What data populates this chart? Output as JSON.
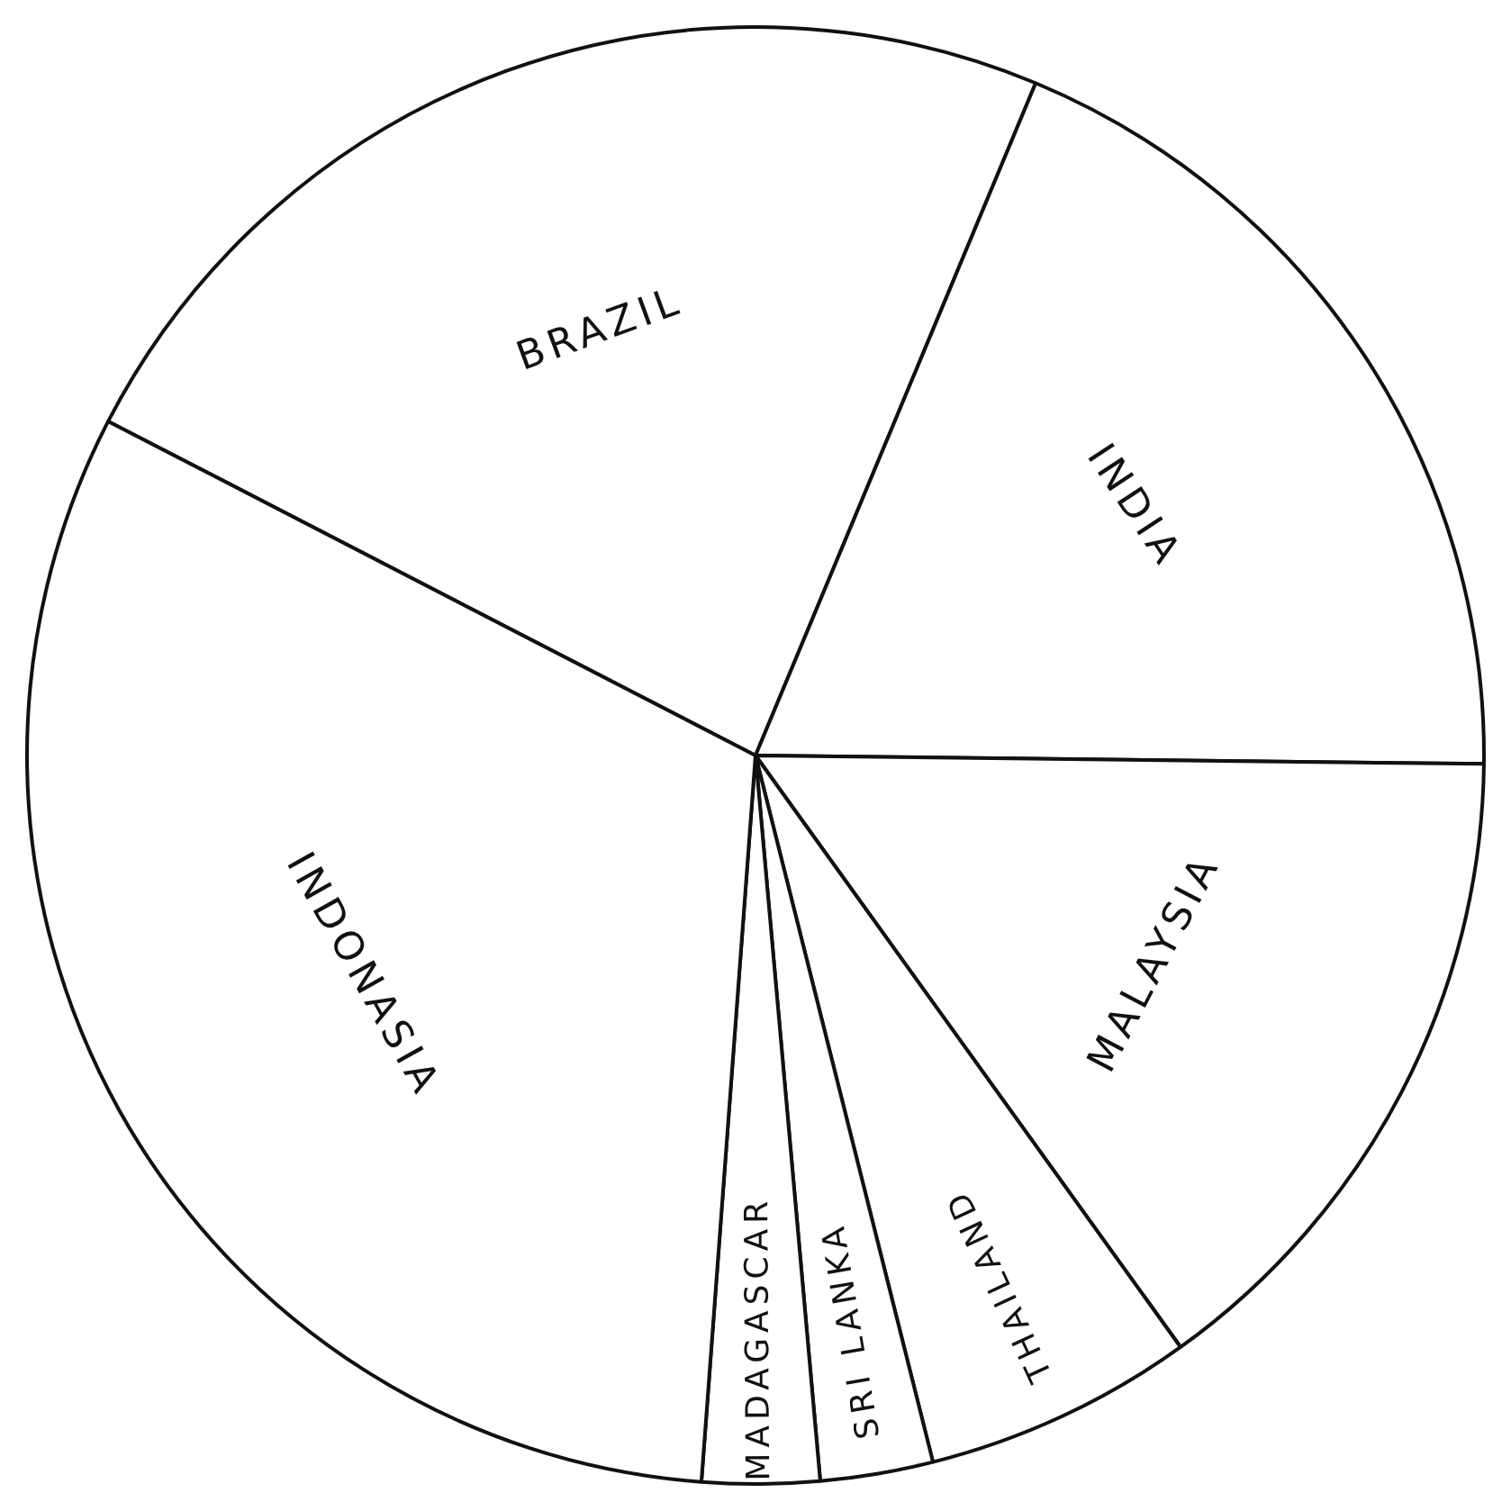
{
  "chart_data": {
    "type": "pie",
    "categories": [
      "BRAZIL",
      "INDIA",
      "MALAYSIA",
      "THAILAND",
      "SRI LANKA",
      "MADAGASCAR",
      "INDONASIA"
    ],
    "values": [
      23.7,
      18.9,
      14.9,
      6.0,
      2.5,
      2.6,
      31.4
    ],
    "colors": [
      "#ffffff",
      "#ffffff",
      "#ffffff",
      "#ffffff",
      "#ffffff",
      "#ffffff",
      "#ffffff"
    ],
    "legend": false
  }
}
